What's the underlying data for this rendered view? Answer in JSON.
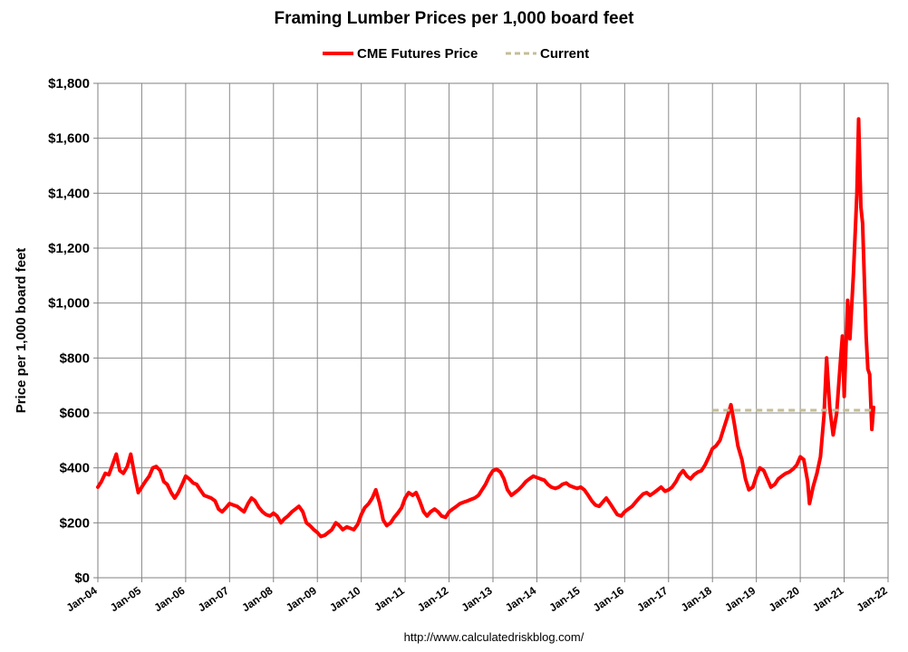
{
  "chart_data": {
    "type": "line",
    "title": "Framing Lumber Prices per 1,000 board feet",
    "ylabel": "Price per 1,000 board feet",
    "xlabel": "",
    "source": "http://www.calculatedriskblog.com/",
    "legend_position": "top-center",
    "grid": true,
    "ylim": [
      0,
      1800
    ],
    "xlim": [
      2004,
      2022
    ],
    "yticks": [
      {
        "value": 0,
        "label": "$0"
      },
      {
        "value": 200,
        "label": "$200"
      },
      {
        "value": 400,
        "label": "$400"
      },
      {
        "value": 600,
        "label": "$600"
      },
      {
        "value": 800,
        "label": "$800"
      },
      {
        "value": 1000,
        "label": "$1,000"
      },
      {
        "value": 1200,
        "label": "$1,200"
      },
      {
        "value": 1400,
        "label": "$1,400"
      },
      {
        "value": 1600,
        "label": "$1,600"
      },
      {
        "value": 1800,
        "label": "$1,800"
      }
    ],
    "xticks": [
      {
        "value": 2004,
        "label": "Jan-04"
      },
      {
        "value": 2005,
        "label": "Jan-05"
      },
      {
        "value": 2006,
        "label": "Jan-06"
      },
      {
        "value": 2007,
        "label": "Jan-07"
      },
      {
        "value": 2008,
        "label": "Jan-08"
      },
      {
        "value": 2009,
        "label": "Jan-09"
      },
      {
        "value": 2010,
        "label": "Jan-10"
      },
      {
        "value": 2011,
        "label": "Jan-11"
      },
      {
        "value": 2012,
        "label": "Jan-12"
      },
      {
        "value": 2013,
        "label": "Jan-13"
      },
      {
        "value": 2014,
        "label": "Jan-14"
      },
      {
        "value": 2015,
        "label": "Jan-15"
      },
      {
        "value": 2016,
        "label": "Jan-16"
      },
      {
        "value": 2017,
        "label": "Jan-17"
      },
      {
        "value": 2018,
        "label": "Jan-18"
      },
      {
        "value": 2019,
        "label": "Jan-19"
      },
      {
        "value": 2020,
        "label": "Jan-20"
      },
      {
        "value": 2021,
        "label": "Jan-21"
      },
      {
        "value": 2022,
        "label": "Jan-22"
      }
    ],
    "series": [
      {
        "name": "CME Futures Price",
        "color": "#ff0000",
        "style": "solid",
        "points": [
          [
            2004.0,
            330
          ],
          [
            2004.08,
            350
          ],
          [
            2004.17,
            380
          ],
          [
            2004.25,
            375
          ],
          [
            2004.33,
            410
          ],
          [
            2004.42,
            450
          ],
          [
            2004.5,
            390
          ],
          [
            2004.58,
            380
          ],
          [
            2004.67,
            405
          ],
          [
            2004.75,
            450
          ],
          [
            2004.83,
            380
          ],
          [
            2004.92,
            310
          ],
          [
            2005.0,
            330
          ],
          [
            2005.08,
            350
          ],
          [
            2005.17,
            370
          ],
          [
            2005.25,
            400
          ],
          [
            2005.33,
            405
          ],
          [
            2005.42,
            390
          ],
          [
            2005.5,
            350
          ],
          [
            2005.58,
            340
          ],
          [
            2005.67,
            310
          ],
          [
            2005.75,
            290
          ],
          [
            2005.83,
            310
          ],
          [
            2005.92,
            340
          ],
          [
            2006.0,
            370
          ],
          [
            2006.08,
            360
          ],
          [
            2006.17,
            345
          ],
          [
            2006.25,
            340
          ],
          [
            2006.33,
            320
          ],
          [
            2006.42,
            300
          ],
          [
            2006.5,
            295
          ],
          [
            2006.58,
            290
          ],
          [
            2006.67,
            280
          ],
          [
            2006.75,
            250
          ],
          [
            2006.83,
            240
          ],
          [
            2006.92,
            255
          ],
          [
            2007.0,
            270
          ],
          [
            2007.08,
            265
          ],
          [
            2007.17,
            260
          ],
          [
            2007.25,
            250
          ],
          [
            2007.33,
            240
          ],
          [
            2007.42,
            270
          ],
          [
            2007.5,
            290
          ],
          [
            2007.58,
            280
          ],
          [
            2007.67,
            255
          ],
          [
            2007.75,
            240
          ],
          [
            2007.83,
            230
          ],
          [
            2007.92,
            225
          ],
          [
            2008.0,
            235
          ],
          [
            2008.08,
            225
          ],
          [
            2008.17,
            200
          ],
          [
            2008.25,
            215
          ],
          [
            2008.33,
            225
          ],
          [
            2008.42,
            240
          ],
          [
            2008.5,
            250
          ],
          [
            2008.58,
            260
          ],
          [
            2008.67,
            240
          ],
          [
            2008.75,
            200
          ],
          [
            2008.83,
            190
          ],
          [
            2008.92,
            175
          ],
          [
            2009.0,
            165
          ],
          [
            2009.08,
            150
          ],
          [
            2009.17,
            155
          ],
          [
            2009.25,
            165
          ],
          [
            2009.33,
            175
          ],
          [
            2009.42,
            200
          ],
          [
            2009.5,
            190
          ],
          [
            2009.58,
            175
          ],
          [
            2009.67,
            185
          ],
          [
            2009.75,
            180
          ],
          [
            2009.83,
            175
          ],
          [
            2009.92,
            195
          ],
          [
            2010.0,
            230
          ],
          [
            2010.08,
            255
          ],
          [
            2010.17,
            270
          ],
          [
            2010.25,
            290
          ],
          [
            2010.33,
            320
          ],
          [
            2010.42,
            270
          ],
          [
            2010.5,
            210
          ],
          [
            2010.58,
            190
          ],
          [
            2010.67,
            200
          ],
          [
            2010.75,
            220
          ],
          [
            2010.83,
            235
          ],
          [
            2010.92,
            255
          ],
          [
            2011.0,
            290
          ],
          [
            2011.08,
            310
          ],
          [
            2011.17,
            300
          ],
          [
            2011.25,
            310
          ],
          [
            2011.33,
            280
          ],
          [
            2011.42,
            240
          ],
          [
            2011.5,
            225
          ],
          [
            2011.58,
            240
          ],
          [
            2011.67,
            250
          ],
          [
            2011.75,
            240
          ],
          [
            2011.83,
            225
          ],
          [
            2011.92,
            220
          ],
          [
            2012.0,
            240
          ],
          [
            2012.08,
            250
          ],
          [
            2012.17,
            260
          ],
          [
            2012.25,
            270
          ],
          [
            2012.33,
            275
          ],
          [
            2012.42,
            280
          ],
          [
            2012.5,
            285
          ],
          [
            2012.58,
            290
          ],
          [
            2012.67,
            300
          ],
          [
            2012.75,
            320
          ],
          [
            2012.83,
            340
          ],
          [
            2012.92,
            370
          ],
          [
            2013.0,
            390
          ],
          [
            2013.08,
            395
          ],
          [
            2013.17,
            385
          ],
          [
            2013.25,
            360
          ],
          [
            2013.33,
            320
          ],
          [
            2013.42,
            300
          ],
          [
            2013.5,
            310
          ],
          [
            2013.58,
            320
          ],
          [
            2013.67,
            335
          ],
          [
            2013.75,
            350
          ],
          [
            2013.83,
            360
          ],
          [
            2013.92,
            370
          ],
          [
            2014.0,
            365
          ],
          [
            2014.08,
            360
          ],
          [
            2014.17,
            355
          ],
          [
            2014.25,
            340
          ],
          [
            2014.33,
            330
          ],
          [
            2014.42,
            325
          ],
          [
            2014.5,
            330
          ],
          [
            2014.58,
            340
          ],
          [
            2014.67,
            345
          ],
          [
            2014.75,
            335
          ],
          [
            2014.83,
            330
          ],
          [
            2014.92,
            325
          ],
          [
            2015.0,
            330
          ],
          [
            2015.08,
            320
          ],
          [
            2015.17,
            300
          ],
          [
            2015.25,
            280
          ],
          [
            2015.33,
            265
          ],
          [
            2015.42,
            260
          ],
          [
            2015.5,
            275
          ],
          [
            2015.58,
            290
          ],
          [
            2015.67,
            270
          ],
          [
            2015.75,
            250
          ],
          [
            2015.83,
            230
          ],
          [
            2015.92,
            225
          ],
          [
            2016.0,
            240
          ],
          [
            2016.08,
            250
          ],
          [
            2016.17,
            260
          ],
          [
            2016.25,
            275
          ],
          [
            2016.33,
            290
          ],
          [
            2016.42,
            305
          ],
          [
            2016.5,
            310
          ],
          [
            2016.58,
            300
          ],
          [
            2016.67,
            310
          ],
          [
            2016.75,
            320
          ],
          [
            2016.83,
            330
          ],
          [
            2016.92,
            315
          ],
          [
            2017.0,
            320
          ],
          [
            2017.08,
            330
          ],
          [
            2017.17,
            350
          ],
          [
            2017.25,
            375
          ],
          [
            2017.33,
            390
          ],
          [
            2017.42,
            370
          ],
          [
            2017.5,
            360
          ],
          [
            2017.58,
            375
          ],
          [
            2017.67,
            385
          ],
          [
            2017.75,
            390
          ],
          [
            2017.83,
            410
          ],
          [
            2017.92,
            440
          ],
          [
            2018.0,
            470
          ],
          [
            2018.08,
            480
          ],
          [
            2018.17,
            500
          ],
          [
            2018.25,
            540
          ],
          [
            2018.33,
            580
          ],
          [
            2018.42,
            630
          ],
          [
            2018.5,
            560
          ],
          [
            2018.58,
            480
          ],
          [
            2018.67,
            430
          ],
          [
            2018.75,
            360
          ],
          [
            2018.83,
            320
          ],
          [
            2018.92,
            330
          ],
          [
            2019.0,
            370
          ],
          [
            2019.08,
            400
          ],
          [
            2019.17,
            390
          ],
          [
            2019.25,
            360
          ],
          [
            2019.33,
            330
          ],
          [
            2019.42,
            340
          ],
          [
            2019.5,
            360
          ],
          [
            2019.58,
            370
          ],
          [
            2019.67,
            380
          ],
          [
            2019.75,
            385
          ],
          [
            2019.83,
            395
          ],
          [
            2019.92,
            410
          ],
          [
            2020.0,
            440
          ],
          [
            2020.08,
            430
          ],
          [
            2020.17,
            350
          ],
          [
            2020.21,
            270
          ],
          [
            2020.29,
            330
          ],
          [
            2020.38,
            380
          ],
          [
            2020.46,
            440
          ],
          [
            2020.54,
            590
          ],
          [
            2020.6,
            800
          ],
          [
            2020.67,
            620
          ],
          [
            2020.75,
            520
          ],
          [
            2020.83,
            600
          ],
          [
            2020.92,
            800
          ],
          [
            2020.96,
            880
          ],
          [
            2021.0,
            660
          ],
          [
            2021.08,
            1010
          ],
          [
            2021.13,
            870
          ],
          [
            2021.21,
            1100
          ],
          [
            2021.29,
            1400
          ],
          [
            2021.33,
            1670
          ],
          [
            2021.38,
            1350
          ],
          [
            2021.42,
            1290
          ],
          [
            2021.5,
            880
          ],
          [
            2021.54,
            760
          ],
          [
            2021.58,
            740
          ],
          [
            2021.63,
            540
          ],
          [
            2021.67,
            620
          ]
        ]
      },
      {
        "name": "Current",
        "color": "#c4bd97",
        "style": "dashed",
        "points": [
          [
            2018.0,
            610
          ],
          [
            2021.67,
            610
          ]
        ]
      }
    ]
  }
}
